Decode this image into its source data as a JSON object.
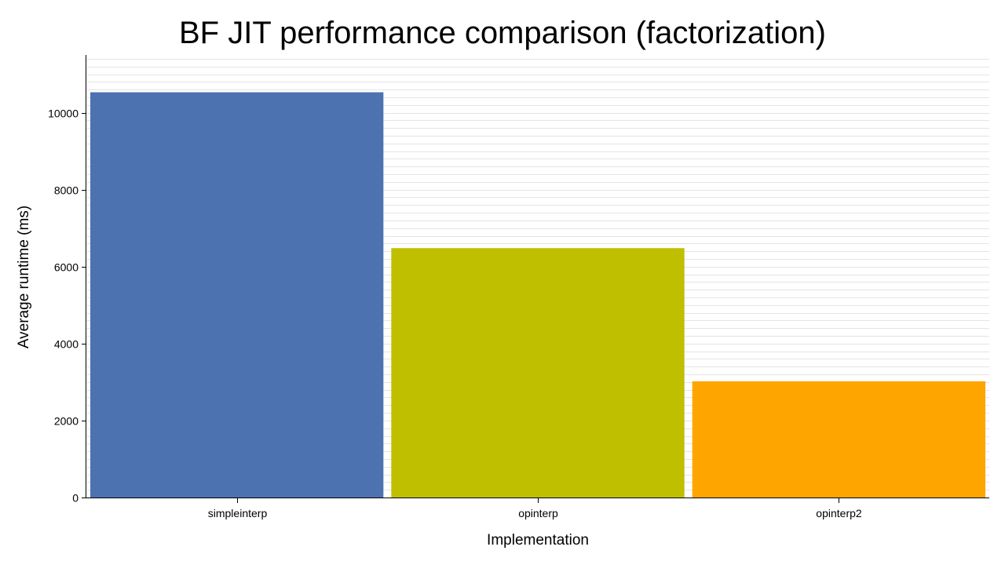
{
  "chart_data": {
    "type": "bar",
    "title": "BF JIT performance comparison (factorization)",
    "xlabel": "Implementation",
    "ylabel": "Average runtime (ms)",
    "categories": [
      "simpleinterp",
      "opinterp",
      "opinterp2"
    ],
    "values": [
      10530,
      6480,
      3020
    ],
    "colors": [
      "#4c72b0",
      "#bfbf00",
      "#ffa500"
    ],
    "ylim": [
      0,
      11500
    ],
    "yticks": [
      0,
      2000,
      4000,
      6000,
      8000,
      10000
    ],
    "minor_grid_step": 200,
    "grid": true,
    "legend": "none"
  }
}
